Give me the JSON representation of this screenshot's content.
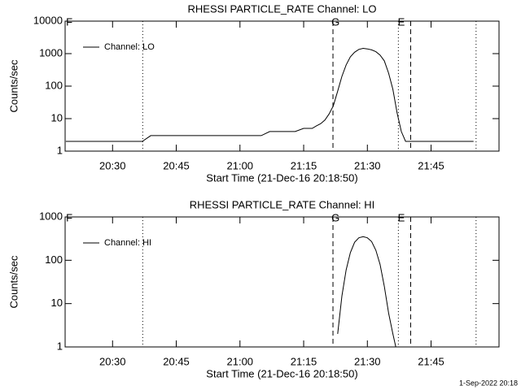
{
  "chart_data": [
    {
      "type": "line",
      "title": "RHESSI PARTICLE_RATE Channel: LO",
      "xlabel": "Start Time (21-Dec-16 20:18:50)",
      "ylabel": "Counts/sec",
      "log_y": true,
      "legend": "upper left",
      "ylim": [
        1,
        10000
      ],
      "yticks": [
        1,
        10,
        100,
        1000,
        10000
      ],
      "xlim": [
        1218.83,
        1321
      ],
      "xticks": [
        {
          "value": 1230,
          "label": "20:30"
        },
        {
          "value": 1245,
          "label": "20:45"
        },
        {
          "value": 1260,
          "label": "21:00"
        },
        {
          "value": 1275,
          "label": "21:15"
        },
        {
          "value": 1290,
          "label": "21:30"
        },
        {
          "value": 1305,
          "label": "21:45"
        }
      ],
      "vlines": [
        {
          "x": 1237.1,
          "style": "dotted"
        },
        {
          "x": 1281.9,
          "style": "dashed"
        },
        {
          "x": 1297.3,
          "style": "dotted"
        },
        {
          "x": 1300.2,
          "style": "dashed"
        },
        {
          "x": 1315.6,
          "style": "dotted"
        }
      ],
      "annotations": [
        {
          "x": 1219.8,
          "text": "F"
        },
        {
          "x": 1282.5,
          "text": "G"
        },
        {
          "x": 1298,
          "text": "E"
        }
      ],
      "series": [
        {
          "name": "Channel: LO",
          "color": "#000000",
          "x": [
            1219,
            1221,
            1223,
            1225,
            1227,
            1229,
            1231,
            1233,
            1235,
            1237,
            1239,
            1241,
            1243,
            1245,
            1247,
            1249,
            1251,
            1253,
            1255,
            1257,
            1259,
            1261,
            1263,
            1265,
            1267,
            1269,
            1271,
            1273,
            1275,
            1277,
            1278,
            1279,
            1280,
            1281,
            1282,
            1283,
            1284,
            1285,
            1286,
            1287,
            1288,
            1289,
            1290,
            1291,
            1292,
            1293,
            1294,
            1295,
            1296,
            1297,
            1298,
            1299,
            1301,
            1303,
            1305,
            1307,
            1309,
            1311,
            1313,
            1315
          ],
          "values": [
            2,
            2,
            2,
            2,
            2,
            2,
            2,
            2,
            2,
            2,
            3,
            3,
            3,
            3,
            3,
            3,
            3,
            3,
            3,
            3,
            3,
            3,
            3,
            3,
            4,
            4,
            4,
            4,
            5,
            5,
            6,
            7,
            9,
            14,
            25,
            70,
            200,
            450,
            800,
            1100,
            1350,
            1450,
            1400,
            1300,
            1150,
            900,
            600,
            250,
            80,
            15,
            4,
            2,
            2,
            2,
            2,
            2,
            2,
            2,
            2,
            2
          ]
        }
      ]
    },
    {
      "type": "line",
      "title": "RHESSI PARTICLE_RATE Channel: HI",
      "xlabel": "Start Time (21-Dec-16 20:18:50)",
      "ylabel": "Counts/sec",
      "log_y": true,
      "legend": "upper left",
      "ylim": [
        1,
        1000
      ],
      "yticks": [
        1,
        10,
        100,
        1000
      ],
      "xlim": [
        1218.83,
        1321
      ],
      "xticks": [
        {
          "value": 1230,
          "label": "20:30"
        },
        {
          "value": 1245,
          "label": "20:45"
        },
        {
          "value": 1260,
          "label": "21:00"
        },
        {
          "value": 1275,
          "label": "21:15"
        },
        {
          "value": 1290,
          "label": "21:30"
        },
        {
          "value": 1305,
          "label": "21:45"
        }
      ],
      "vlines": [
        {
          "x": 1237.1,
          "style": "dotted"
        },
        {
          "x": 1281.9,
          "style": "dashed"
        },
        {
          "x": 1297.3,
          "style": "dotted"
        },
        {
          "x": 1300.2,
          "style": "dashed"
        },
        {
          "x": 1315.6,
          "style": "dotted"
        }
      ],
      "annotations": [
        {
          "x": 1219.8,
          "text": "F"
        },
        {
          "x": 1282.5,
          "text": "G"
        },
        {
          "x": 1298,
          "text": "E"
        }
      ],
      "series": [
        {
          "name": "Channel: HI",
          "color": "#000000",
          "x": [
            1283,
            1284,
            1285,
            1286,
            1287,
            1288,
            1289,
            1290,
            1291,
            1292,
            1293,
            1294,
            1295,
            1296,
            1296.7
          ],
          "values": [
            2,
            15,
            60,
            150,
            260,
            330,
            350,
            330,
            270,
            170,
            80,
            25,
            6,
            2,
            1
          ]
        }
      ]
    }
  ],
  "footer": "1-Sep-2022 20:18"
}
